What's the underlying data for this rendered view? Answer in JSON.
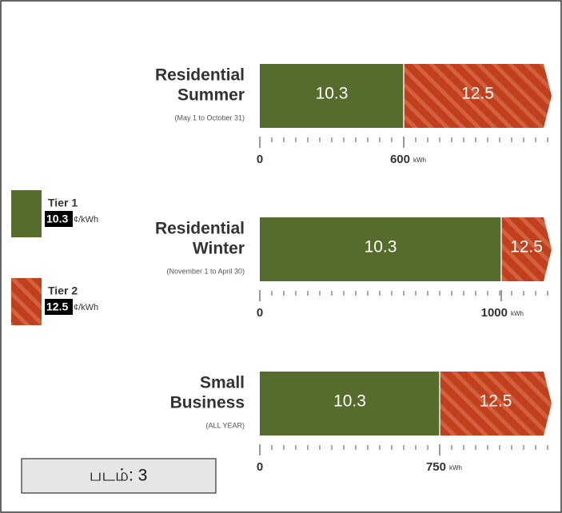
{
  "rows": [
    {
      "title": [
        "Residential",
        "Summer"
      ],
      "subtitle": "(May 1 to October 31)",
      "tier1": "10.3",
      "tier2": "12.5",
      "start": "0",
      "threshold": "600",
      "unit": "kWh"
    },
    {
      "title": [
        "Residential",
        "Winter"
      ],
      "subtitle": "(November 1 to April 30)",
      "tier1": "10.3",
      "tier2": "12.5",
      "start": "0",
      "threshold": "1000",
      "unit": "kWh"
    },
    {
      "title": [
        "Small",
        "Business"
      ],
      "subtitle": "(ALL YEAR)",
      "tier1": "10.3",
      "tier2": "12.5",
      "start": "0",
      "threshold": "750",
      "unit": "kWh"
    }
  ],
  "legend": [
    {
      "name": "Tier 1",
      "rate": "10.3",
      "unit": "¢/kWh"
    },
    {
      "name": "Tier 2",
      "rate": "12.5",
      "unit": "¢/kWh"
    }
  ],
  "caption": "படம்: 3"
}
